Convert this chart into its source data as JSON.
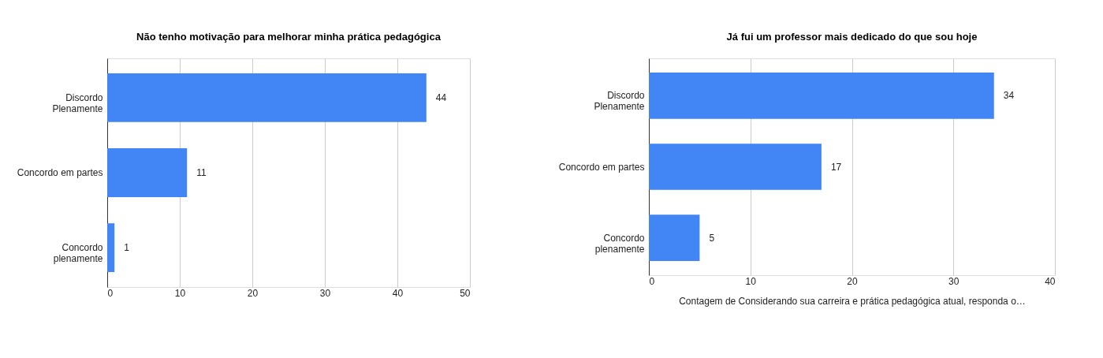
{
  "chart_data": [
    {
      "type": "bar",
      "orientation": "horizontal",
      "title": "Não tenho motivação para melhorar minha prática pedagógica",
      "categories": [
        "Discordo\nPlenamente",
        "Concordo em partes",
        "Concordo\nplenamente"
      ],
      "values": [
        44,
        11,
        1
      ],
      "color": "#4285f4",
      "xlim": [
        0,
        50
      ],
      "xticks": [
        0,
        10,
        20,
        30,
        40,
        50
      ],
      "grid": "x",
      "data_labels": true
    },
    {
      "type": "bar",
      "orientation": "horizontal",
      "title": "Já fui um professor mais dedicado do que sou hoje",
      "xlabel": "Contagem de Considerando sua carreira e prática pedagógica atual, responda o…",
      "categories": [
        "Discordo\nPlenamente",
        "Concordo em partes",
        "Concordo\nplenamente"
      ],
      "values": [
        34,
        17,
        5
      ],
      "color": "#4285f4",
      "xlim": [
        0,
        40
      ],
      "xticks": [
        0,
        10,
        20,
        30,
        40
      ],
      "grid": "x",
      "data_labels": true
    }
  ]
}
